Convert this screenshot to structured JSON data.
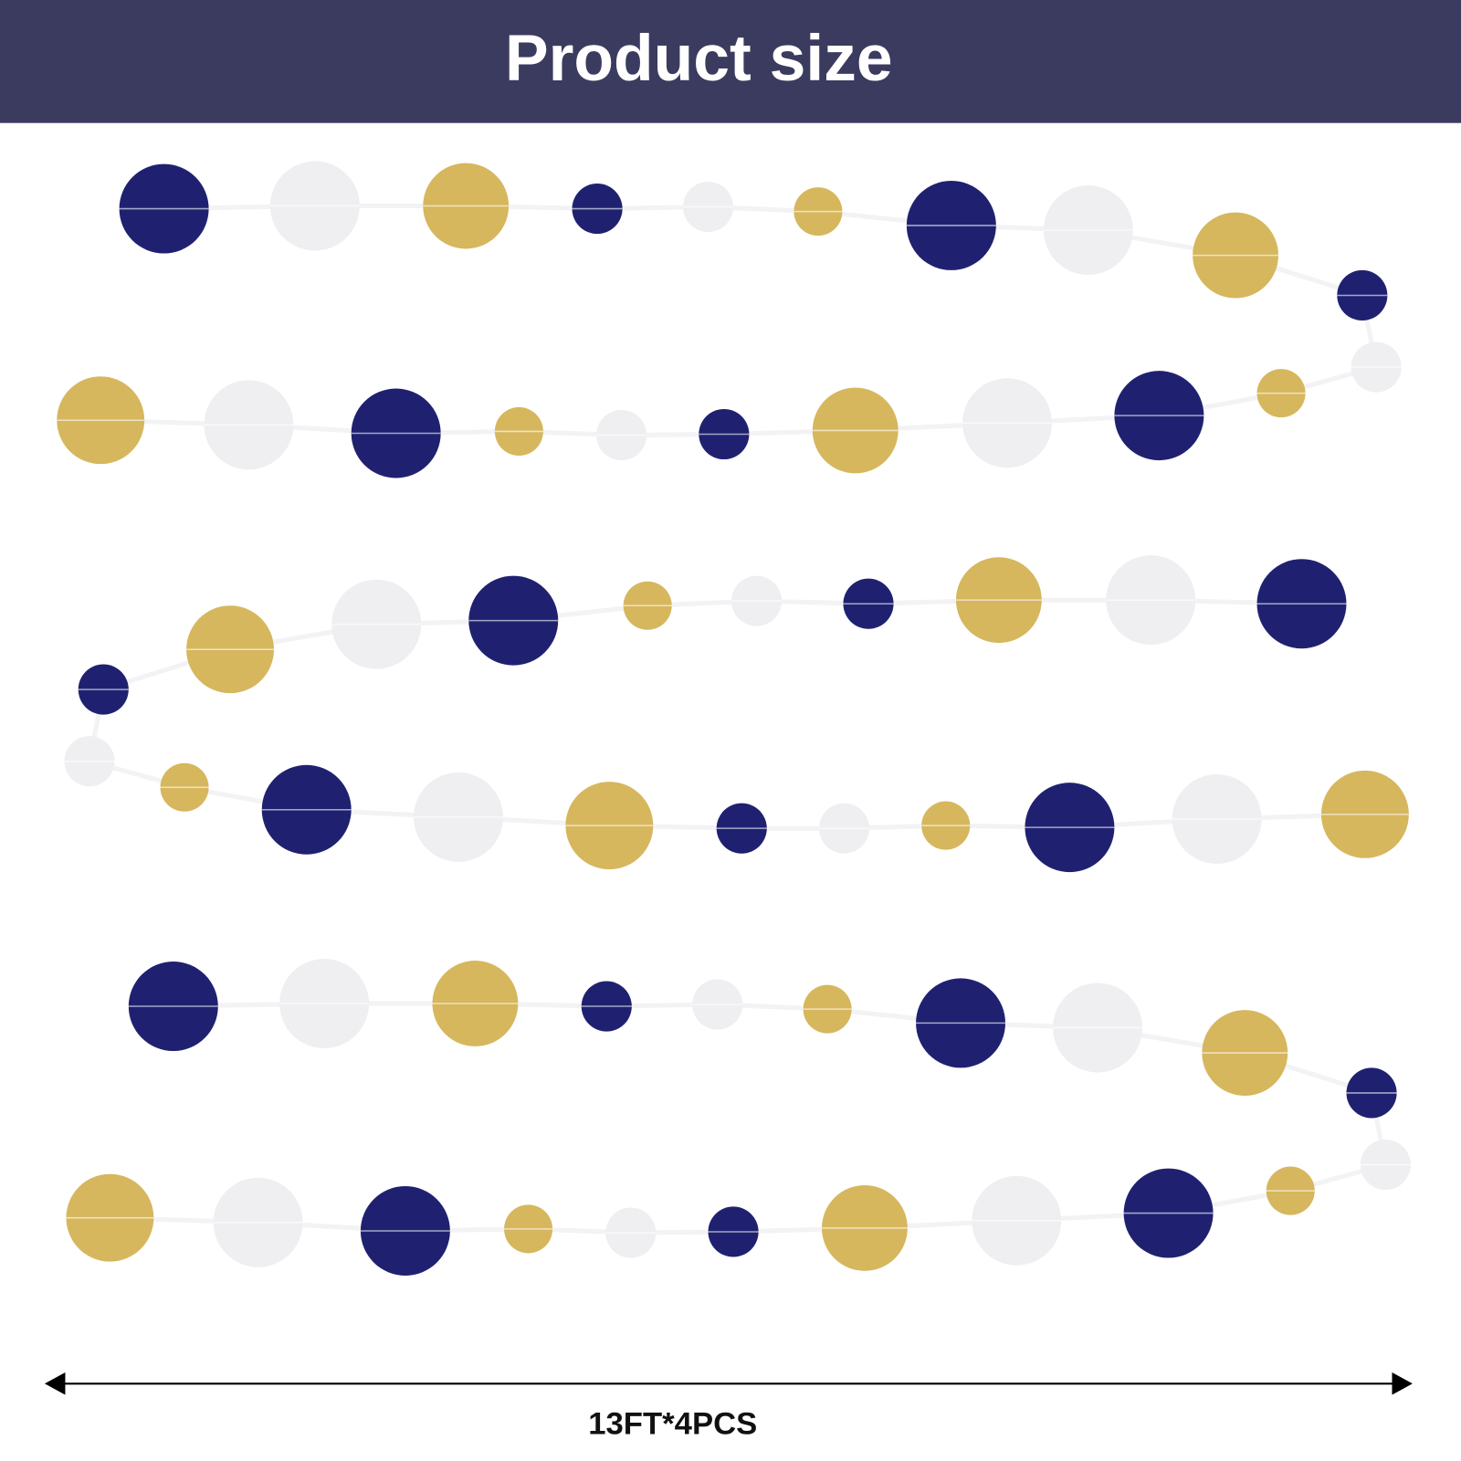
{
  "header": {
    "title": "Product size"
  },
  "dimension": {
    "label": "13FT*4PCS"
  }
}
